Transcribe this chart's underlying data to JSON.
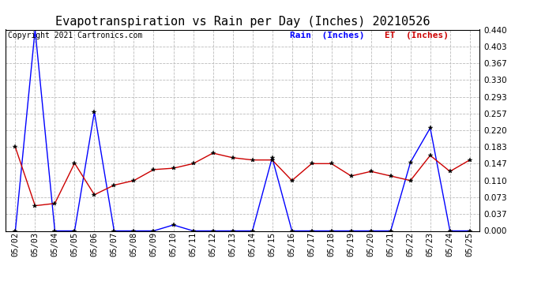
{
  "title": "Evapotranspiration vs Rain per Day (Inches) 20210526",
  "copyright": "Copyright 2021 Cartronics.com",
  "legend_rain": "Rain  (Inches)",
  "legend_et": "ET  (Inches)",
  "x_labels": [
    "05/02",
    "05/03",
    "05/04",
    "05/05",
    "05/06",
    "05/07",
    "05/08",
    "05/09",
    "05/10",
    "05/11",
    "05/12",
    "05/13",
    "05/14",
    "05/15",
    "05/16",
    "05/17",
    "05/18",
    "05/19",
    "05/20",
    "05/21",
    "05/22",
    "05/23",
    "05/24",
    "05/25"
  ],
  "rain": [
    0.0,
    0.44,
    0.0,
    0.0,
    0.26,
    0.0,
    0.0,
    0.0,
    0.013,
    0.0,
    0.0,
    0.0,
    0.0,
    0.16,
    0.0,
    0.0,
    0.0,
    0.0,
    0.0,
    0.0,
    0.15,
    0.225,
    0.0,
    0.0
  ],
  "et": [
    0.183,
    0.055,
    0.06,
    0.148,
    0.079,
    0.1,
    0.11,
    0.134,
    0.137,
    0.147,
    0.17,
    0.16,
    0.155,
    0.155,
    0.11,
    0.147,
    0.147,
    0.12,
    0.13,
    0.12,
    0.11,
    0.165,
    0.13,
    0.155
  ],
  "rain_color": "#0000FF",
  "et_color": "#CC0000",
  "background_color": "#FFFFFF",
  "grid_color": "#BBBBBB",
  "y_ticks": [
    0.0,
    0.037,
    0.073,
    0.11,
    0.147,
    0.183,
    0.22,
    0.257,
    0.293,
    0.33,
    0.367,
    0.403,
    0.44
  ],
  "ylim": [
    0.0,
    0.44
  ],
  "title_fontsize": 11,
  "copyright_fontsize": 7,
  "legend_fontsize": 8,
  "tick_fontsize": 7.5
}
